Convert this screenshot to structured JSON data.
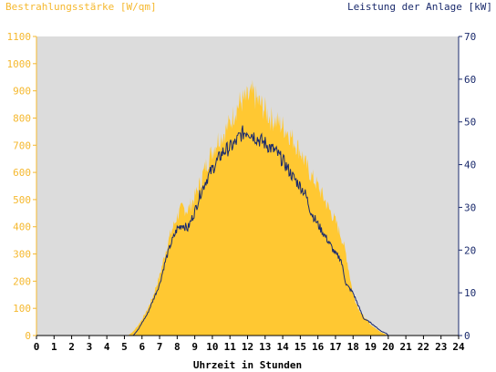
{
  "chart_data": {
    "type": "area",
    "title": "",
    "y_left_label": "Bestrahlungsstärke [W/qm]",
    "y_right_label": "Leistung der Anlage [kW]",
    "xlabel": "Uhrzeit in Stunden",
    "xlim": [
      0,
      24
    ],
    "y_left_lim": [
      0,
      1100
    ],
    "y_right_lim": [
      0,
      70
    ],
    "x_ticks": [
      "0",
      "1",
      "2",
      "3",
      "4",
      "5",
      "6",
      "7",
      "8",
      "9",
      "10",
      "11",
      "12",
      "13",
      "14",
      "15",
      "16",
      "17",
      "18",
      "19",
      "20",
      "21",
      "22",
      "23",
      "24"
    ],
    "y_left_ticks": [
      "0",
      "100",
      "200",
      "300",
      "400",
      "500",
      "600",
      "700",
      "800",
      "900",
      "1000",
      "1100"
    ],
    "y_right_ticks": [
      "0",
      "10",
      "20",
      "30",
      "40",
      "50",
      "60",
      "70"
    ],
    "grid": false,
    "colors": {
      "irradiance_fill": "#ffc832",
      "power_line": "#1a2a6c",
      "plot_background": "#dcdcdc",
      "left_axis": "#f5b82e",
      "right_axis": "#1a2a6c"
    },
    "series": [
      {
        "name": "Bestrahlungsstärke [W/qm]",
        "axis": "left",
        "kind": "area",
        "x": [
          0,
          5.2,
          5.5,
          5.8,
          6.0,
          6.3,
          6.6,
          7.0,
          7.3,
          7.6,
          8.0,
          8.3,
          8.6,
          9.0,
          9.3,
          9.6,
          10.0,
          10.3,
          10.6,
          11.0,
          11.3,
          11.6,
          12.0,
          12.3,
          12.6,
          13.0,
          13.3,
          13.6,
          14.0,
          14.3,
          14.6,
          15.0,
          15.3,
          15.6,
          16.0,
          16.3,
          16.6,
          17.0,
          17.3,
          17.6,
          18.0,
          18.3,
          18.6,
          19.0,
          19.3,
          19.6,
          19.9,
          20.0,
          24
        ],
        "y": [
          0,
          0,
          15,
          40,
          60,
          95,
          140,
          220,
          300,
          370,
          440,
          470,
          460,
          510,
          560,
          620,
          680,
          720,
          740,
          780,
          830,
          860,
          870,
          890,
          860,
          830,
          800,
          790,
          770,
          750,
          720,
          680,
          630,
          590,
          550,
          510,
          470,
          420,
          370,
          300,
          150,
          100,
          70,
          40,
          25,
          12,
          3,
          0,
          0
        ]
      },
      {
        "name": "Leistung der Anlage [kW]",
        "axis": "right",
        "kind": "line",
        "x": [
          0,
          5.5,
          5.8,
          6.0,
          6.3,
          6.6,
          7.0,
          7.3,
          7.6,
          8.0,
          8.3,
          8.6,
          9.0,
          9.3,
          9.6,
          10.0,
          10.3,
          10.6,
          11.0,
          11.3,
          11.6,
          12.0,
          12.3,
          12.6,
          13.0,
          13.3,
          13.6,
          14.0,
          14.3,
          14.6,
          15.0,
          15.3,
          15.6,
          16.0,
          16.3,
          16.6,
          17.0,
          17.3,
          17.6,
          18.0,
          18.3,
          18.6,
          19.0,
          19.3,
          19.6,
          19.9,
          20.0,
          24
        ],
        "y": [
          0,
          0,
          1.5,
          3,
          5,
          8,
          12,
          17,
          21,
          25,
          26,
          25,
          29,
          33,
          36,
          39,
          41,
          43,
          44,
          45,
          47,
          48,
          47,
          46,
          45,
          44,
          43,
          41,
          39,
          37,
          35,
          33,
          29,
          26,
          24,
          22,
          19,
          18,
          12,
          10,
          7,
          4,
          3,
          2,
          1,
          0.5,
          0,
          0
        ]
      }
    ]
  }
}
